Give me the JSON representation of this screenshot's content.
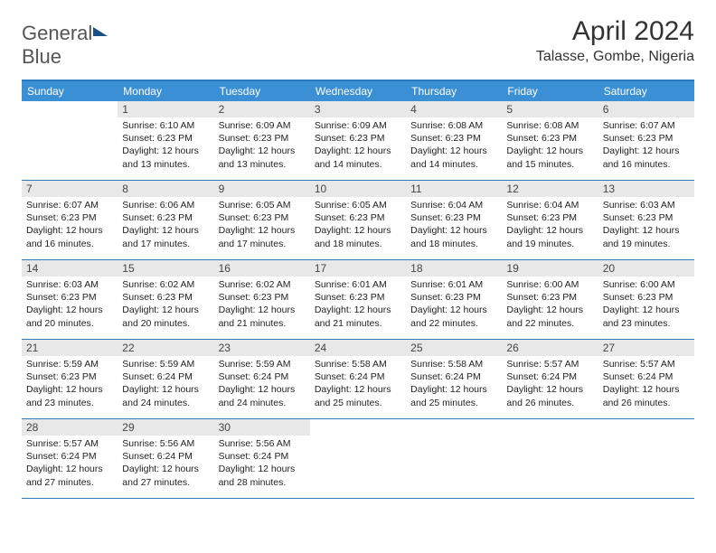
{
  "logo": {
    "line1": "General",
    "line2": "Blue"
  },
  "title": "April 2024",
  "location": "Talasse, Gombe, Nigeria",
  "header_bg": "#3b8fd4",
  "border_color": "#2c7ac0",
  "daynum_bg": "#e8e8e8",
  "dows": [
    "Sunday",
    "Monday",
    "Tuesday",
    "Wednesday",
    "Thursday",
    "Friday",
    "Saturday"
  ],
  "first_dow_offset": 1,
  "days": [
    {
      "n": 1,
      "sr": "6:10 AM",
      "ss": "6:23 PM",
      "dl": "12 hours and 13 minutes."
    },
    {
      "n": 2,
      "sr": "6:09 AM",
      "ss": "6:23 PM",
      "dl": "12 hours and 13 minutes."
    },
    {
      "n": 3,
      "sr": "6:09 AM",
      "ss": "6:23 PM",
      "dl": "12 hours and 14 minutes."
    },
    {
      "n": 4,
      "sr": "6:08 AM",
      "ss": "6:23 PM",
      "dl": "12 hours and 14 minutes."
    },
    {
      "n": 5,
      "sr": "6:08 AM",
      "ss": "6:23 PM",
      "dl": "12 hours and 15 minutes."
    },
    {
      "n": 6,
      "sr": "6:07 AM",
      "ss": "6:23 PM",
      "dl": "12 hours and 16 minutes."
    },
    {
      "n": 7,
      "sr": "6:07 AM",
      "ss": "6:23 PM",
      "dl": "12 hours and 16 minutes."
    },
    {
      "n": 8,
      "sr": "6:06 AM",
      "ss": "6:23 PM",
      "dl": "12 hours and 17 minutes."
    },
    {
      "n": 9,
      "sr": "6:05 AM",
      "ss": "6:23 PM",
      "dl": "12 hours and 17 minutes."
    },
    {
      "n": 10,
      "sr": "6:05 AM",
      "ss": "6:23 PM",
      "dl": "12 hours and 18 minutes."
    },
    {
      "n": 11,
      "sr": "6:04 AM",
      "ss": "6:23 PM",
      "dl": "12 hours and 18 minutes."
    },
    {
      "n": 12,
      "sr": "6:04 AM",
      "ss": "6:23 PM",
      "dl": "12 hours and 19 minutes."
    },
    {
      "n": 13,
      "sr": "6:03 AM",
      "ss": "6:23 PM",
      "dl": "12 hours and 19 minutes."
    },
    {
      "n": 14,
      "sr": "6:03 AM",
      "ss": "6:23 PM",
      "dl": "12 hours and 20 minutes."
    },
    {
      "n": 15,
      "sr": "6:02 AM",
      "ss": "6:23 PM",
      "dl": "12 hours and 20 minutes."
    },
    {
      "n": 16,
      "sr": "6:02 AM",
      "ss": "6:23 PM",
      "dl": "12 hours and 21 minutes."
    },
    {
      "n": 17,
      "sr": "6:01 AM",
      "ss": "6:23 PM",
      "dl": "12 hours and 21 minutes."
    },
    {
      "n": 18,
      "sr": "6:01 AM",
      "ss": "6:23 PM",
      "dl": "12 hours and 22 minutes."
    },
    {
      "n": 19,
      "sr": "6:00 AM",
      "ss": "6:23 PM",
      "dl": "12 hours and 22 minutes."
    },
    {
      "n": 20,
      "sr": "6:00 AM",
      "ss": "6:23 PM",
      "dl": "12 hours and 23 minutes."
    },
    {
      "n": 21,
      "sr": "5:59 AM",
      "ss": "6:23 PM",
      "dl": "12 hours and 23 minutes."
    },
    {
      "n": 22,
      "sr": "5:59 AM",
      "ss": "6:24 PM",
      "dl": "12 hours and 24 minutes."
    },
    {
      "n": 23,
      "sr": "5:59 AM",
      "ss": "6:24 PM",
      "dl": "12 hours and 24 minutes."
    },
    {
      "n": 24,
      "sr": "5:58 AM",
      "ss": "6:24 PM",
      "dl": "12 hours and 25 minutes."
    },
    {
      "n": 25,
      "sr": "5:58 AM",
      "ss": "6:24 PM",
      "dl": "12 hours and 25 minutes."
    },
    {
      "n": 26,
      "sr": "5:57 AM",
      "ss": "6:24 PM",
      "dl": "12 hours and 26 minutes."
    },
    {
      "n": 27,
      "sr": "5:57 AM",
      "ss": "6:24 PM",
      "dl": "12 hours and 26 minutes."
    },
    {
      "n": 28,
      "sr": "5:57 AM",
      "ss": "6:24 PM",
      "dl": "12 hours and 27 minutes."
    },
    {
      "n": 29,
      "sr": "5:56 AM",
      "ss": "6:24 PM",
      "dl": "12 hours and 27 minutes."
    },
    {
      "n": 30,
      "sr": "5:56 AM",
      "ss": "6:24 PM",
      "dl": "12 hours and 28 minutes."
    }
  ],
  "labels": {
    "sunrise": "Sunrise:",
    "sunset": "Sunset:",
    "daylight": "Daylight:"
  }
}
